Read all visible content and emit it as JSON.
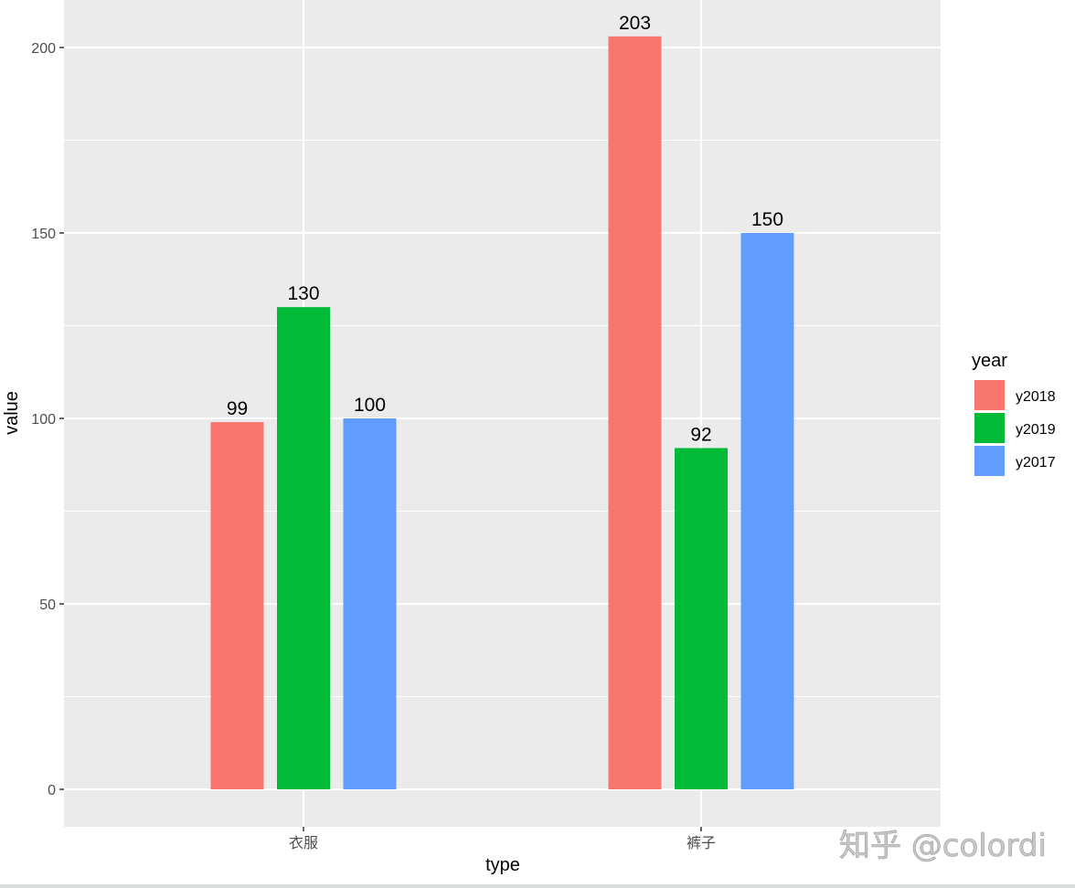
{
  "chart_data": {
    "type": "bar",
    "title": "",
    "xlabel": "type",
    "ylabel": "value",
    "categories": [
      "衣服",
      "裤子"
    ],
    "series": [
      {
        "name": "y2018",
        "color": "#F8766D",
        "values": [
          99,
          203
        ]
      },
      {
        "name": "y2019",
        "color": "#00BA38",
        "values": [
          130,
          92
        ]
      },
      {
        "name": "y2017",
        "color": "#619CFF",
        "values": [
          100,
          150
        ]
      }
    ],
    "data_labels": [
      [
        "99",
        "203"
      ],
      [
        "130",
        "92"
      ],
      [
        "100",
        "150"
      ]
    ],
    "yticks": [
      0,
      50,
      100,
      150,
      200
    ],
    "ytick_labels": [
      "0",
      "50",
      "100",
      "150",
      "200"
    ],
    "ylim": [
      -10,
      213
    ],
    "grid": true,
    "legend": {
      "title": "year",
      "position": "right",
      "entries": [
        "y2018",
        "y2019",
        "y2017"
      ]
    },
    "panel_background": "#EBEBEB",
    "gridline_color": "#FFFFFF"
  },
  "watermark": "知乎 @colordi"
}
